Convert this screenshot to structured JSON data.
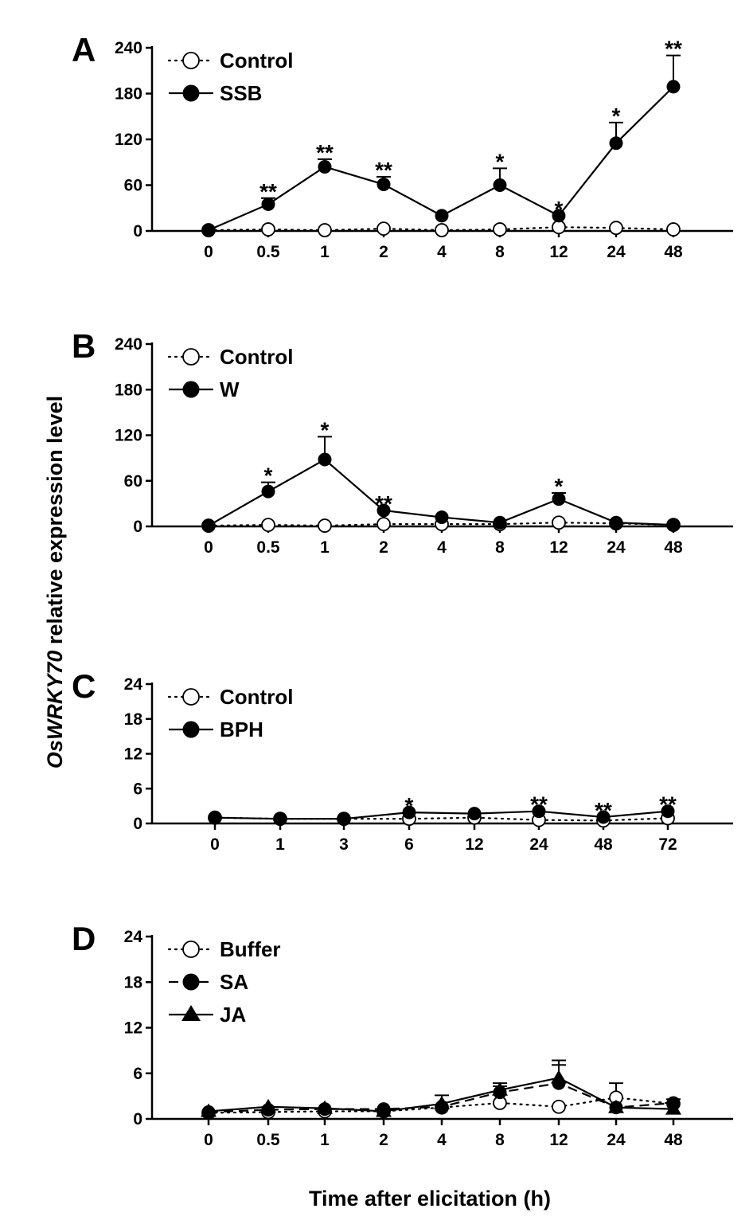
{
  "chart_data": [
    {
      "type": "line",
      "panel": "A",
      "x_categories": [
        "0",
        "0.5",
        "1",
        "2",
        "4",
        "8",
        "12",
        "24",
        "48"
      ],
      "y_ticks": [
        "0",
        "60",
        "120",
        "180",
        "240"
      ],
      "ylim": [
        0,
        240
      ],
      "series": [
        {
          "name": "Control",
          "style": "dotted",
          "marker": "open-circle",
          "values": [
            1,
            2,
            1,
            3,
            1,
            2,
            5,
            4,
            2
          ],
          "err": [
            0,
            0,
            0,
            0,
            0,
            0,
            0,
            0,
            0
          ]
        },
        {
          "name": "SSB",
          "style": "solid",
          "marker": "filled-circle",
          "values": [
            1,
            35,
            84,
            61,
            20,
            60,
            20,
            115,
            189
          ],
          "err": [
            0,
            8,
            10,
            10,
            0,
            22,
            0,
            27,
            41
          ]
        }
      ],
      "annotations": [
        "",
        "**",
        "**",
        "**",
        "",
        "*",
        "*",
        "*",
        "**"
      ]
    },
    {
      "type": "line",
      "panel": "B",
      "x_categories": [
        "0",
        "0.5",
        "1",
        "2",
        "4",
        "8",
        "12",
        "24",
        "48"
      ],
      "y_ticks": [
        "0",
        "60",
        "120",
        "180",
        "240"
      ],
      "ylim": [
        0,
        240
      ],
      "series": [
        {
          "name": "Control",
          "style": "dotted",
          "marker": "open-circle",
          "values": [
            1,
            2,
            1,
            3,
            3,
            3,
            5,
            4,
            2
          ],
          "err": [
            0,
            0,
            0,
            0,
            0,
            0,
            0,
            0,
            0
          ]
        },
        {
          "name": "W",
          "style": "solid",
          "marker": "filled-circle",
          "values": [
            1,
            46,
            88,
            21,
            12,
            5,
            36,
            5,
            2
          ],
          "err": [
            0,
            12,
            30,
            0,
            0,
            0,
            8,
            0,
            0
          ]
        }
      ],
      "annotations": [
        "",
        "*",
        "*",
        "**",
        "",
        "",
        "*",
        "",
        ""
      ]
    },
    {
      "type": "line",
      "panel": "C",
      "x_categories": [
        "0",
        "1",
        "3",
        "6",
        "12",
        "24",
        "48",
        "72"
      ],
      "y_ticks": [
        "0",
        "6",
        "12",
        "18",
        "24"
      ],
      "ylim": [
        0,
        24
      ],
      "series": [
        {
          "name": "Control",
          "style": "dotted",
          "marker": "open-circle",
          "values": [
            1,
            0.8,
            0.8,
            0.8,
            1,
            0.6,
            0.5,
            0.9
          ],
          "err": [
            0,
            0,
            0,
            0,
            0,
            0,
            0,
            0
          ]
        },
        {
          "name": "BPH",
          "style": "solid",
          "marker": "filled-circle",
          "values": [
            1,
            0.8,
            0.8,
            1.9,
            1.7,
            2.1,
            1.1,
            2.1
          ],
          "err": [
            0,
            0,
            0,
            0,
            0,
            0,
            0,
            0
          ]
        }
      ],
      "annotations": [
        "",
        "",
        "",
        "*",
        "",
        "**",
        "**",
        "**"
      ]
    },
    {
      "type": "line",
      "panel": "D",
      "x_categories": [
        "0",
        "0.5",
        "1",
        "2",
        "4",
        "8",
        "12",
        "24",
        "48"
      ],
      "y_ticks": [
        "0",
        "6",
        "12",
        "18",
        "24"
      ],
      "ylim": [
        0,
        24
      ],
      "series": [
        {
          "name": "Buffer",
          "style": "dotted",
          "marker": "open-circle",
          "values": [
            0.8,
            0.9,
            1.0,
            1.0,
            1.5,
            2.1,
            1.6,
            2.8,
            2.0
          ],
          "err": [
            0,
            0,
            0,
            0,
            0,
            0,
            0,
            1.9,
            0
          ]
        },
        {
          "name": "SA",
          "style": "dashed",
          "marker": "filled-circle",
          "values": [
            0.9,
            1.2,
            1.3,
            1.3,
            1.6,
            3.5,
            4.7,
            1.5,
            2.1
          ],
          "err": [
            0,
            0,
            0,
            0,
            0,
            0.8,
            2.4,
            0,
            0.5
          ]
        },
        {
          "name": "JA",
          "style": "solid",
          "marker": "filled-triangle",
          "values": [
            1.0,
            1.6,
            1.4,
            1.0,
            2.0,
            3.8,
            5.4,
            1.5,
            1.3
          ],
          "err": [
            0,
            0,
            0,
            0,
            1.1,
            0.9,
            2.3,
            0,
            0
          ]
        }
      ],
      "annotations": [
        "",
        "",
        "",
        "",
        "",
        "",
        "",
        "",
        ""
      ]
    }
  ],
  "y_axis_label_italic": "OsWRKY70",
  "y_axis_label_rest": " relative expression level",
  "x_axis_label": "Time after elicitation (h)"
}
